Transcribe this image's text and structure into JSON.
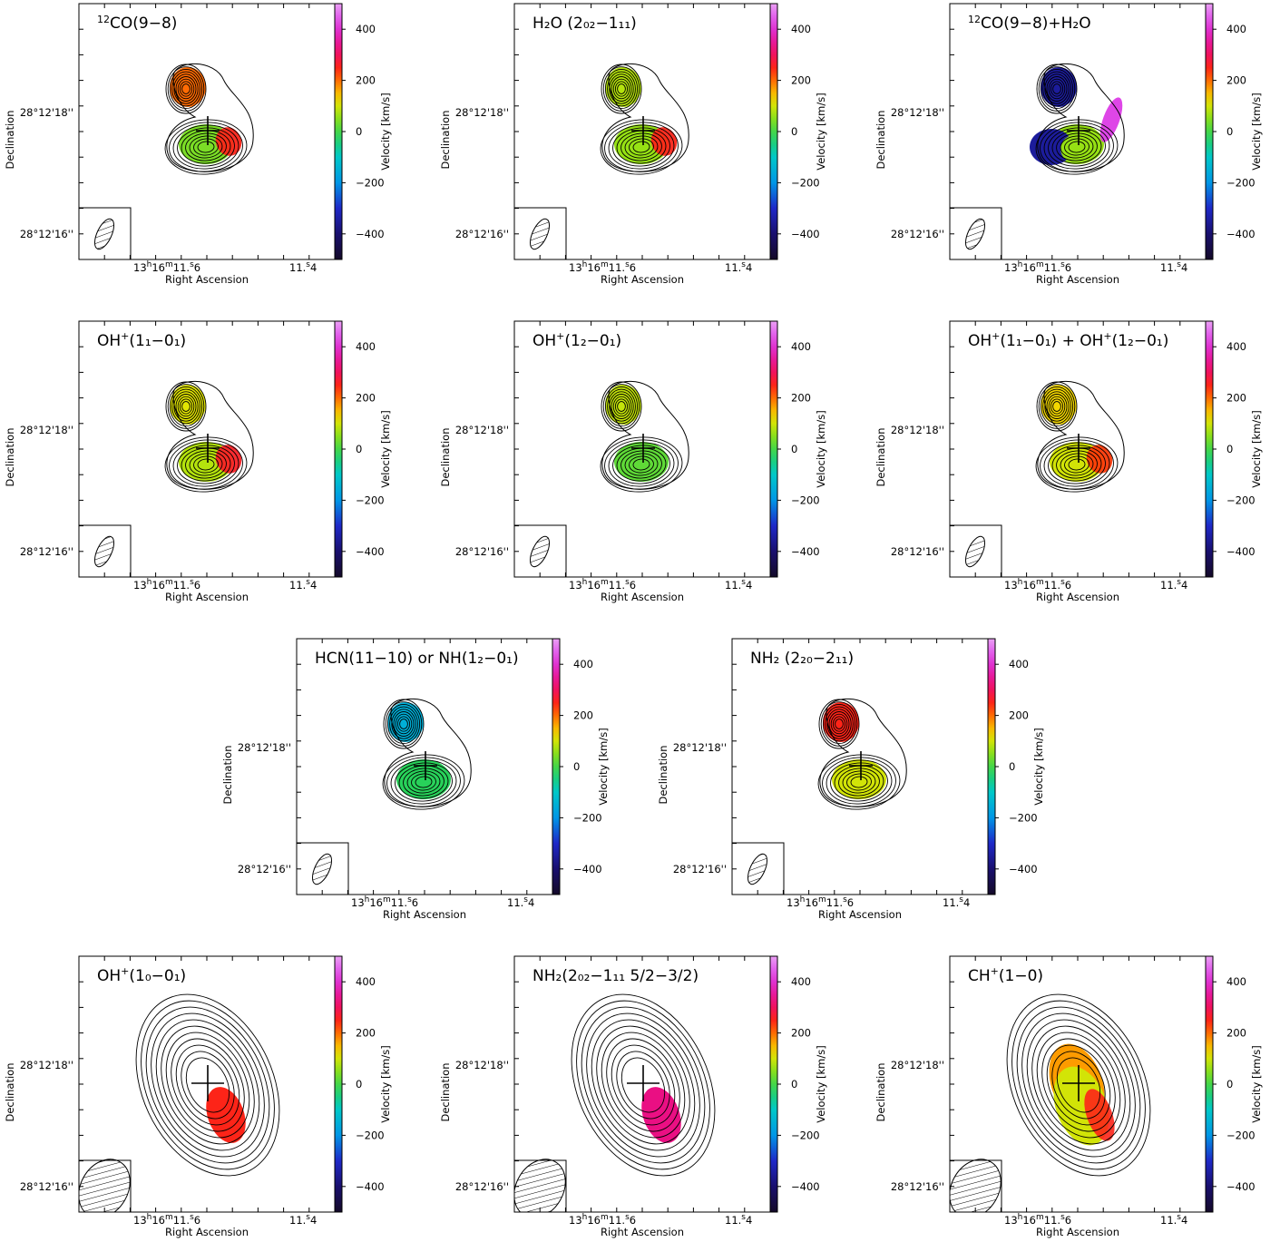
{
  "figure": {
    "common": {
      "xlabel": "Right Ascension",
      "ylabel": "Declination",
      "colorbar_label": "Velocity [km/s]",
      "colorbar_ticks": [
        400,
        200,
        0,
        -200,
        -400
      ],
      "colorbar_range": [
        -500,
        500
      ],
      "ra_tick_a": "13h16m11.s6",
      "ra_tick_b": "11.s4",
      "dec_tick_a": "28°12'18''",
      "dec_tick_b": "28°12'16''"
    }
  },
  "chart_data": [
    {
      "type": "heatmap",
      "panel": 1,
      "title_main": "CO(9−8)",
      "title_sup": "12",
      "title_sub": "",
      "title_tail": "",
      "xlabel": "Right Ascension",
      "ylabel": "Declination",
      "colorbar": "Velocity [km/s]",
      "vrange": [
        -500,
        500
      ],
      "contour_levels": 11,
      "velocity_regions": [
        {
          "component": "north",
          "velocity_kms": 200
        },
        {
          "component": "south",
          "velocity_kms": 40
        },
        {
          "component": "south-east edge",
          "velocity_kms": 250
        }
      ]
    },
    {
      "type": "heatmap",
      "panel": 2,
      "title_main": "H₂O (2₀₂−1₁₁)",
      "title_sup": "",
      "title_sub": "",
      "title_tail": "",
      "xlabel": "Right Ascension",
      "ylabel": "Declination",
      "colorbar": "Velocity [km/s]",
      "vrange": [
        -500,
        500
      ],
      "contour_levels": 11,
      "velocity_regions": [
        {
          "component": "north",
          "velocity_kms": 80
        },
        {
          "component": "south",
          "velocity_kms": 60
        },
        {
          "component": "south-east edge",
          "velocity_kms": 250
        }
      ]
    },
    {
      "type": "heatmap",
      "panel": 3,
      "title_main": "CO(9−8)+H₂O",
      "title_sup": "12",
      "title_sub": "",
      "title_tail": "",
      "xlabel": "Right Ascension",
      "ylabel": "Declination",
      "colorbar": "Velocity [km/s]",
      "vrange": [
        -500,
        500
      ],
      "contour_levels": 11,
      "velocity_regions": [
        {
          "component": "north",
          "velocity_kms": -350
        },
        {
          "component": "south-west",
          "velocity_kms": -350
        },
        {
          "component": "south",
          "velocity_kms": 60
        },
        {
          "component": "east",
          "velocity_kms": 420
        }
      ]
    },
    {
      "type": "heatmap",
      "panel": 4,
      "title_main": "OH",
      "title_sup": "+",
      "title_sub": "(1₁−0₁)",
      "title_tail": "",
      "xlabel": "Right Ascension",
      "ylabel": "Declination",
      "colorbar": "Velocity [km/s]",
      "vrange": [
        -500,
        500
      ],
      "contour_levels": 11,
      "velocity_regions": [
        {
          "component": "north",
          "velocity_kms": 110
        },
        {
          "component": "south",
          "velocity_kms": 80
        },
        {
          "component": "south-east edge",
          "velocity_kms": 260
        }
      ]
    },
    {
      "type": "heatmap",
      "panel": 5,
      "title_main": "OH",
      "title_sup": "+",
      "title_sub": "(1₂−0₁)",
      "title_tail": "",
      "xlabel": "Right Ascension",
      "ylabel": "Declination",
      "colorbar": "Velocity [km/s]",
      "vrange": [
        -500,
        500
      ],
      "contour_levels": 11,
      "velocity_regions": [
        {
          "component": "north",
          "velocity_kms": 90
        },
        {
          "component": "south",
          "velocity_kms": 20
        }
      ]
    },
    {
      "type": "heatmap",
      "panel": 6,
      "title_main": "OH",
      "title_sup": "+",
      "title_sub": "(1₁−0₁) + OH",
      "title_tail": "",
      "title_extra_sup": "+",
      "title_extra": "(1₂−0₁)",
      "xlabel": "Right Ascension",
      "ylabel": "Declination",
      "colorbar": "Velocity [km/s]",
      "vrange": [
        -500,
        500
      ],
      "contour_levels": 11,
      "velocity_regions": [
        {
          "component": "north",
          "velocity_kms": 130
        },
        {
          "component": "south",
          "velocity_kms": 100
        },
        {
          "component": "south-east edge",
          "velocity_kms": 230
        }
      ]
    },
    {
      "type": "heatmap",
      "panel": 7,
      "title_main": "HCN(11−10) or NH(1₂−0₁)",
      "title_sup": "",
      "title_sub": "",
      "title_tail": "",
      "xlabel": "Right Ascension",
      "ylabel": "Declination",
      "colorbar": "Velocity [km/s]",
      "vrange": [
        -500,
        500
      ],
      "contour_levels": 11,
      "velocity_regions": [
        {
          "component": "north",
          "velocity_kms": -150
        },
        {
          "component": "south",
          "velocity_kms": -20
        }
      ]
    },
    {
      "type": "heatmap",
      "panel": 8,
      "title_main": "NH₂ (2₂₀−2₁₁)",
      "title_sup": "",
      "title_sub": "",
      "title_tail": "",
      "xlabel": "Right Ascension",
      "ylabel": "Declination",
      "colorbar": "Velocity [km/s]",
      "vrange": [
        -500,
        500
      ],
      "contour_levels": 11,
      "velocity_regions": [
        {
          "component": "north",
          "velocity_kms": 250
        },
        {
          "component": "south",
          "velocity_kms": 100
        }
      ]
    },
    {
      "type": "heatmap",
      "panel": 9,
      "title_main": "OH",
      "title_sup": "+",
      "title_sub": "(1₀−0₁)",
      "title_tail": "",
      "xlabel": "Right Ascension",
      "ylabel": "Declination",
      "colorbar": "Velocity [km/s]",
      "vrange": [
        -500,
        500
      ],
      "contour_levels": 11,
      "velocity_regions": [
        {
          "component": "south-east",
          "velocity_kms": 250
        }
      ]
    },
    {
      "type": "heatmap",
      "panel": 10,
      "title_main": "NH₂(2₀₂−1₁₁ 5/2−3/2)",
      "title_sup": "",
      "title_sub": "",
      "title_tail": "",
      "xlabel": "Right Ascension",
      "ylabel": "Declination",
      "colorbar": "Velocity [km/s]",
      "vrange": [
        -500,
        500
      ],
      "contour_levels": 11,
      "velocity_regions": [
        {
          "component": "south-east",
          "velocity_kms": 330
        }
      ]
    },
    {
      "type": "heatmap",
      "panel": 11,
      "title_main": "CH",
      "title_sup": "+",
      "title_sub": "(1−0)",
      "title_tail": "",
      "xlabel": "Right Ascension",
      "ylabel": "Declination",
      "colorbar": "Velocity [km/s]",
      "vrange": [
        -500,
        500
      ],
      "contour_levels": 11,
      "velocity_regions": [
        {
          "component": "north",
          "velocity_kms": 170
        },
        {
          "component": "centre",
          "velocity_kms": 100
        },
        {
          "component": "south-east edge",
          "velocity_kms": 250
        }
      ]
    }
  ]
}
